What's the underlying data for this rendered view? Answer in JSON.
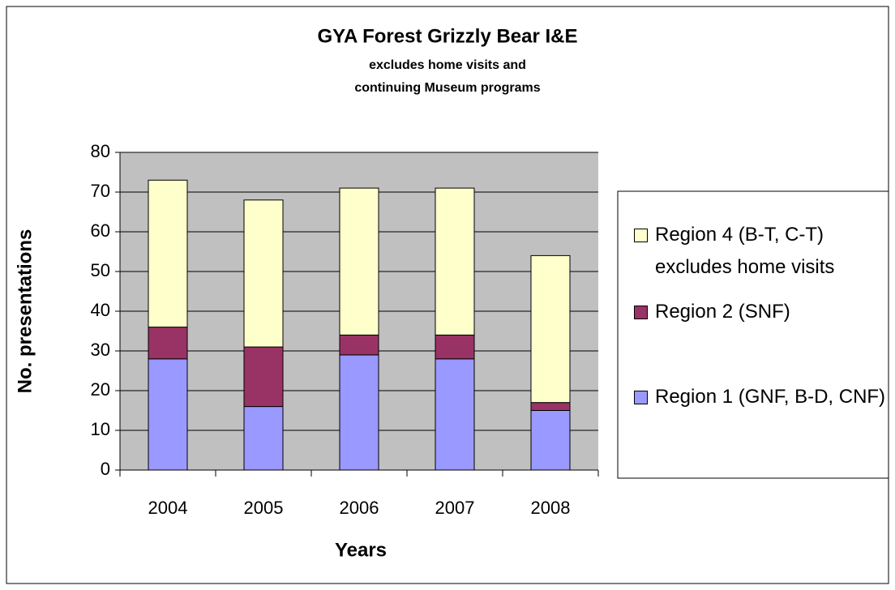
{
  "chart_data": {
    "type": "stacked_bar",
    "title": "GYA Forest Grizzly Bear I&E",
    "subtitle": [
      "excludes home visits and",
      "continuing Museum programs"
    ],
    "x_label": "Years",
    "y_label": "No. presentations",
    "categories": [
      "2004",
      "2005",
      "2006",
      "2007",
      "2008"
    ],
    "series": [
      {
        "name": "Region 1 (GNF, B-D, CNF)",
        "color": "#9999ff",
        "values": [
          28,
          16,
          29,
          28,
          15
        ]
      },
      {
        "name": "Region 2 (SNF)",
        "color": "#993366",
        "values": [
          8,
          15,
          5,
          6,
          2
        ]
      },
      {
        "name": "Region 4 (B-T, C-T) excludes home visits",
        "color": "#ffffcc",
        "values": [
          37,
          37,
          37,
          37,
          37
        ]
      }
    ],
    "ylim": [
      0,
      80
    ],
    "yticks": [
      0,
      10,
      20,
      30,
      40,
      50,
      60,
      70,
      80
    ],
    "grid": true,
    "legend": "right"
  }
}
